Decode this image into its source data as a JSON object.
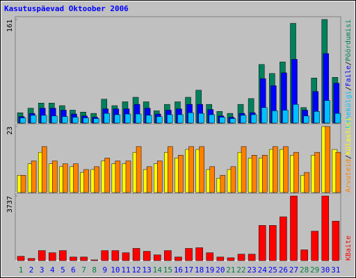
{
  "chart_data": [
    {
      "type": "bar",
      "title": "Kasutuspäevad Oktoober 2006",
      "ylim": [
        0,
        161
      ],
      "yticks": [
        161
      ],
      "legend_separator": "/",
      "series": [
        {
          "name": "Pöördumisi",
          "color": "#00805c",
          "values": [
            16,
            23,
            31,
            31,
            27,
            20,
            17,
            15,
            37,
            27,
            33,
            40,
            33,
            19,
            29,
            33,
            40,
            51,
            29,
            18,
            15,
            29,
            38,
            91,
            77,
            95,
            155,
            24,
            70,
            161,
            71
          ]
        },
        {
          "name": "Faile",
          "color": "#0000ff",
          "values": [
            10,
            15,
            23,
            23,
            20,
            14,
            11,
            9,
            22,
            22,
            22,
            29,
            23,
            14,
            20,
            22,
            29,
            29,
            21,
            11,
            9,
            15,
            16,
            69,
            58,
            78,
            99,
            20,
            49,
            108,
            62
          ]
        },
        {
          "name": "Lehekülgi",
          "color": "#00c0ff",
          "values": [
            8,
            12,
            12,
            11,
            10,
            9,
            8,
            7,
            15,
            13,
            14,
            14,
            12,
            10,
            13,
            13,
            16,
            15,
            13,
            9,
            7,
            12,
            13,
            24,
            19,
            20,
            29,
            11,
            18,
            35,
            15
          ]
        }
      ]
    },
    {
      "type": "bar",
      "ylim": [
        0,
        23
      ],
      "yticks": [
        23
      ],
      "legend_separator": "/",
      "series": [
        {
          "name": "Külastusi",
          "color": "#ffff00",
          "values": [
            6,
            10,
            14,
            10,
            9,
            9,
            7,
            8,
            11,
            10,
            10,
            14,
            8,
            10,
            14,
            12,
            15,
            15,
            8,
            5,
            8,
            14,
            12,
            12,
            15,
            15,
            13,
            6,
            13,
            23,
            15
          ]
        },
        {
          "name": "Arvuteid",
          "color": "#ff8000",
          "values": [
            6,
            11,
            16,
            11,
            10,
            10,
            8,
            9,
            12,
            11,
            11,
            16,
            9,
            11,
            16,
            13,
            16,
            16,
            9,
            6,
            9,
            16,
            13,
            13,
            16,
            16,
            14,
            7,
            14,
            23,
            14
          ]
        }
      ]
    },
    {
      "type": "bar",
      "ylim": [
        0,
        3737
      ],
      "yticks": [
        3737
      ],
      "categories": [
        "1",
        "2",
        "3",
        "4",
        "5",
        "6",
        "7",
        "8",
        "9",
        "10",
        "11",
        "12",
        "13",
        "14",
        "15",
        "16",
        "17",
        "18",
        "19",
        "20",
        "21",
        "22",
        "23",
        "24",
        "25",
        "26",
        "27",
        "28",
        "29",
        "30",
        "31"
      ],
      "category_colors": [
        "#008040",
        "#0000ff",
        "#0000ff",
        "#0000ff",
        "#0000ff",
        "#0000ff",
        "#008040",
        "#008040",
        "#0000ff",
        "#0000ff",
        "#0000ff",
        "#0000ff",
        "#0000ff",
        "#008040",
        "#008040",
        "#0000ff",
        "#0000ff",
        "#0000ff",
        "#0000ff",
        "#0000ff",
        "#008040",
        "#008040",
        "#0000ff",
        "#0000ff",
        "#0000ff",
        "#0000ff",
        "#0000ff",
        "#008040",
        "#008040",
        "#0000ff",
        "#0000ff"
      ],
      "series": [
        {
          "name": "KBaite",
          "color": "#ff0000",
          "values": [
            249,
            125,
            581,
            457,
            581,
            208,
            208,
            42,
            581,
            581,
            457,
            706,
            540,
            332,
            581,
            208,
            706,
            747,
            457,
            208,
            166,
            374,
            374,
            2035,
            2035,
            2533,
            3737,
            623,
            1703,
            3737,
            2284
          ]
        }
      ]
    }
  ]
}
